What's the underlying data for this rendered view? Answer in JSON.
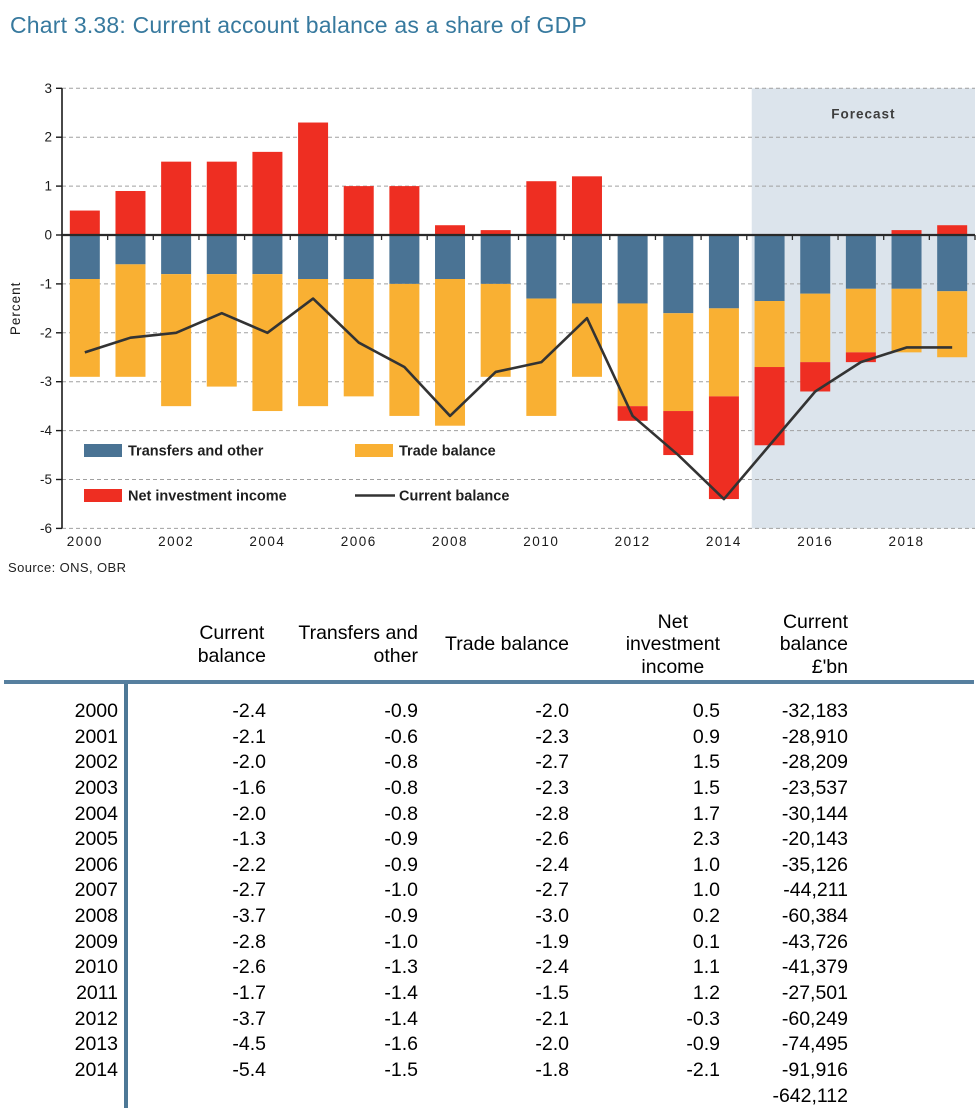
{
  "page": {
    "title": "Chart 3.38: Current account balance as a share of GDP",
    "source": "Source: ONS, OBR"
  },
  "colors": {
    "title": "#37799e",
    "table_rule": "#567f9f",
    "forecast_bg": "#dce4ec",
    "zero_axis": "#2a2a2a",
    "gridline": "#a0a0a0"
  },
  "chart_data": {
    "type": "bar",
    "subtype": "stacked-bars-with-line",
    "title": "Chart 3.38: Current account balance as a share of GDP",
    "xlabel": "",
    "ylabel": "Percent",
    "ylim": [
      -6,
      3
    ],
    "yticks": [
      3,
      2,
      1,
      0,
      -1,
      -2,
      -3,
      -4,
      -5,
      -6
    ],
    "grid": true,
    "legend_position": "inside-bottom-left",
    "forecast": {
      "label": "Forecast",
      "start_year": 2015
    },
    "years": [
      2000,
      2001,
      2002,
      2003,
      2004,
      2005,
      2006,
      2007,
      2008,
      2009,
      2010,
      2011,
      2012,
      2013,
      2014,
      2015,
      2016,
      2017,
      2018,
      2019
    ],
    "xtick_labels": [
      "2000",
      "2002",
      "2004",
      "2006",
      "2008",
      "2010",
      "2012",
      "2014",
      "2016",
      "2018"
    ],
    "series": [
      {
        "name": "Transfers and other",
        "type": "bar",
        "color": "#4a7394",
        "values": [
          -0.9,
          -0.6,
          -0.8,
          -0.8,
          -0.8,
          -0.9,
          -0.9,
          -1.0,
          -0.9,
          -1.0,
          -1.3,
          -1.4,
          -1.4,
          -1.6,
          -1.5,
          -1.35,
          -1.2,
          -1.1,
          -1.1,
          -1.15
        ]
      },
      {
        "name": "Trade balance",
        "type": "bar",
        "color": "#f9b033",
        "values": [
          -2.0,
          -2.3,
          -2.7,
          -2.3,
          -2.8,
          -2.6,
          -2.4,
          -2.7,
          -3.0,
          -1.9,
          -2.4,
          -1.5,
          -2.1,
          -2.0,
          -1.8,
          -1.35,
          -1.4,
          -1.3,
          -1.3,
          -1.35
        ]
      },
      {
        "name": "Net investment income",
        "type": "bar",
        "color": "#ee2e22",
        "values": [
          0.5,
          0.9,
          1.5,
          1.5,
          1.7,
          2.3,
          1.0,
          1.0,
          0.2,
          0.1,
          1.1,
          1.2,
          -0.3,
          -0.9,
          -2.1,
          -1.6,
          -0.6,
          -0.2,
          0.1,
          0.2
        ]
      },
      {
        "name": "Current balance",
        "type": "line",
        "color": "#333333",
        "values": [
          -2.4,
          -2.1,
          -2.0,
          -1.6,
          -2.0,
          -1.3,
          -2.2,
          -2.7,
          -3.7,
          -2.8,
          -2.6,
          -1.7,
          -3.7,
          -4.5,
          -5.4,
          -4.3,
          -3.2,
          -2.6,
          -2.3,
          -2.3
        ]
      }
    ]
  },
  "table": {
    "header": [
      {
        "align": "right",
        "lines": [
          ""
        ]
      },
      {
        "align": "center",
        "lines": [
          "Current",
          "balance"
        ]
      },
      {
        "align": "right",
        "lines": [
          "Transfers and",
          "other"
        ]
      },
      {
        "align": "right",
        "lines": [
          "Trade balance"
        ]
      },
      {
        "align": "center",
        "lines": [
          "Net",
          "investment",
          "income"
        ]
      },
      {
        "align": "right",
        "lines": [
          "Current",
          "balance",
          "£'bn"
        ]
      }
    ],
    "rows": [
      [
        "2000",
        "-2.4",
        "-0.9",
        "-2.0",
        "0.5",
        "-32,183"
      ],
      [
        "2001",
        "-2.1",
        "-0.6",
        "-2.3",
        "0.9",
        "-28,910"
      ],
      [
        "2002",
        "-2.0",
        "-0.8",
        "-2.7",
        "1.5",
        "-28,209"
      ],
      [
        "2003",
        "-1.6",
        "-0.8",
        "-2.3",
        "1.5",
        "-23,537"
      ],
      [
        "2004",
        "-2.0",
        "-0.8",
        "-2.8",
        "1.7",
        "-30,144"
      ],
      [
        "2005",
        "-1.3",
        "-0.9",
        "-2.6",
        "2.3",
        "-20,143"
      ],
      [
        "2006",
        "-2.2",
        "-0.9",
        "-2.4",
        "1.0",
        "-35,126"
      ],
      [
        "2007",
        "-2.7",
        "-1.0",
        "-2.7",
        "1.0",
        "-44,211"
      ],
      [
        "2008",
        "-3.7",
        "-0.9",
        "-3.0",
        "0.2",
        "-60,384"
      ],
      [
        "2009",
        "-2.8",
        "-1.0",
        "-1.9",
        "0.1",
        "-43,726"
      ],
      [
        "2010",
        "-2.6",
        "-1.3",
        "-2.4",
        "1.1",
        "-41,379"
      ],
      [
        "2011",
        "-1.7",
        "-1.4",
        "-1.5",
        "1.2",
        "-27,501"
      ],
      [
        "2012",
        "-3.7",
        "-1.4",
        "-2.1",
        "-0.3",
        "-60,249"
      ],
      [
        "2013",
        "-4.5",
        "-1.6",
        "-2.0",
        "-0.9",
        "-74,495"
      ],
      [
        "2014",
        "-5.4",
        "-1.5",
        "-1.8",
        "-2.1",
        "-91,916"
      ]
    ],
    "total": "-642,112"
  }
}
